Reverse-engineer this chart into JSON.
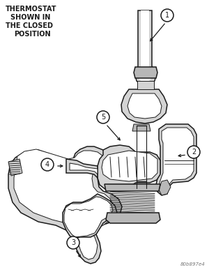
{
  "bg_color": "#ffffff",
  "text_color": "#1a1a1a",
  "line_color": "#1a1a1a",
  "annotation_text": "THERMOSTAT\n SHOWN IN\nTHE CLOSED\n POSITION",
  "watermark": "80b897e4",
  "lw_main": 1.1,
  "lw_thin": 0.7,
  "gray_light": "#d4d4d4",
  "gray_mid": "#b8b8b8",
  "gray_dark": "#909090",
  "white": "#ffffff",
  "hatch_gray": "#cccccc"
}
